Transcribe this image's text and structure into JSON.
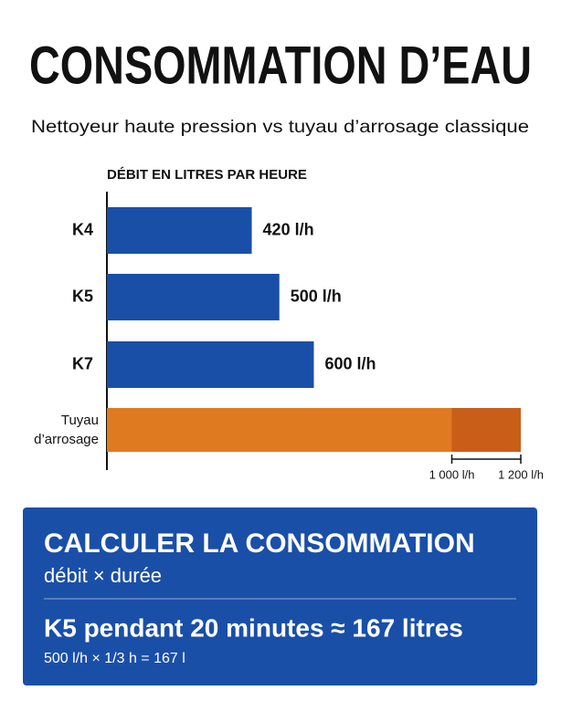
{
  "header": {
    "title": "CONSOMMATION D’EAU",
    "subtitle": "Nettoyeur haute pression vs tuyau d’arrosage classique"
  },
  "chart_data": {
    "type": "bar",
    "orientation": "horizontal",
    "x_label": "DÉBIT EN LITRES PAR HEURE",
    "categories": [
      "K4",
      "K5",
      "K7"
    ],
    "values": [
      420,
      500,
      600
    ],
    "value_labels": [
      "420 l/h",
      "500 l/h",
      "600 l/h"
    ],
    "color": "#1a4fa8",
    "hose": {
      "label": [
        "Tuyau",
        "d’arrosage"
      ],
      "low": 1000,
      "high": 1200,
      "color": "#e07a20",
      "range_color": "#c85e17"
    },
    "xlim": [
      0,
      1200
    ],
    "xticks": [
      {
        "value": 1000,
        "label": "1 000 l/h"
      },
      {
        "value": 1200,
        "label": "1 200 l/h"
      }
    ]
  },
  "calculation": {
    "title": "CALCULER LA CONSOMMATION",
    "subtitle": "débit × durée",
    "example": "K5 pendant 20 minutes ≈ 167 litres",
    "formula": "500 l/h × 1/3 h = 167 l"
  }
}
